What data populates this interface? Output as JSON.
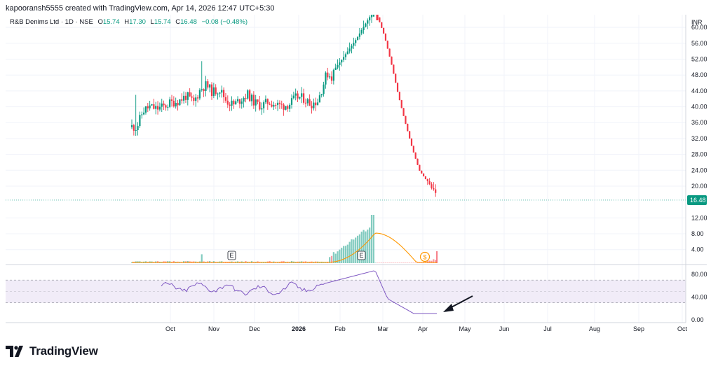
{
  "caption": "kapooransh5555 created with TradingView.com, Apr 14, 2026 12:47 UTC+5:30",
  "legend": {
    "symbol": "R&B Denims Ltd · 1D · NSE",
    "open_label": "O",
    "open": "15.74",
    "high_label": "H",
    "high": "17.30",
    "low_label": "L",
    "low": "15.74",
    "close_label": "C",
    "close": "16.48",
    "change": "−0.08 (−0.48%)"
  },
  "brand": "TradingView",
  "chart_data": {
    "type": "candlestick",
    "currency": "INR",
    "last_price": 16.48,
    "last_price_label": "16.48",
    "price_axis": [
      60,
      56,
      52,
      48,
      44,
      40,
      36,
      32,
      28,
      24,
      20,
      12,
      8,
      4
    ],
    "price_axis_labels": [
      "60.00",
      "56.00",
      "52.00",
      "48.00",
      "44.00",
      "40.00",
      "36.00",
      "32.00",
      "28.00",
      "24.00",
      "20.00",
      "12.00",
      "8.00",
      "4.00"
    ],
    "price_range": [
      0.6,
      63.2
    ],
    "x_axis_labels": [
      "Oct",
      "Nov",
      "Dec",
      "2026",
      "Feb",
      "Mar",
      "Apr",
      "May",
      "Jun",
      "Jul",
      "Aug",
      "Sep",
      "Oct"
    ],
    "earnings_markers": [
      {
        "label": "E",
        "date": "Nov"
      },
      {
        "label": "E",
        "date": "Feb"
      }
    ],
    "dividend_marker": {
      "label": "$",
      "date": "Apr"
    },
    "rsi": {
      "axis": [
        80,
        40,
        0
      ],
      "axis_labels": [
        "80.00",
        "40.00",
        "0.00"
      ],
      "overbought": 70,
      "oversold": 30,
      "range": [
        -5,
        95
      ]
    },
    "colors": {
      "up": "#089981",
      "down": "#f23645",
      "volume_ma": "#ff9800",
      "rsi": "#7e57c2",
      "rsi_band": "#ede7f6",
      "price_line": "#089981"
    }
  }
}
